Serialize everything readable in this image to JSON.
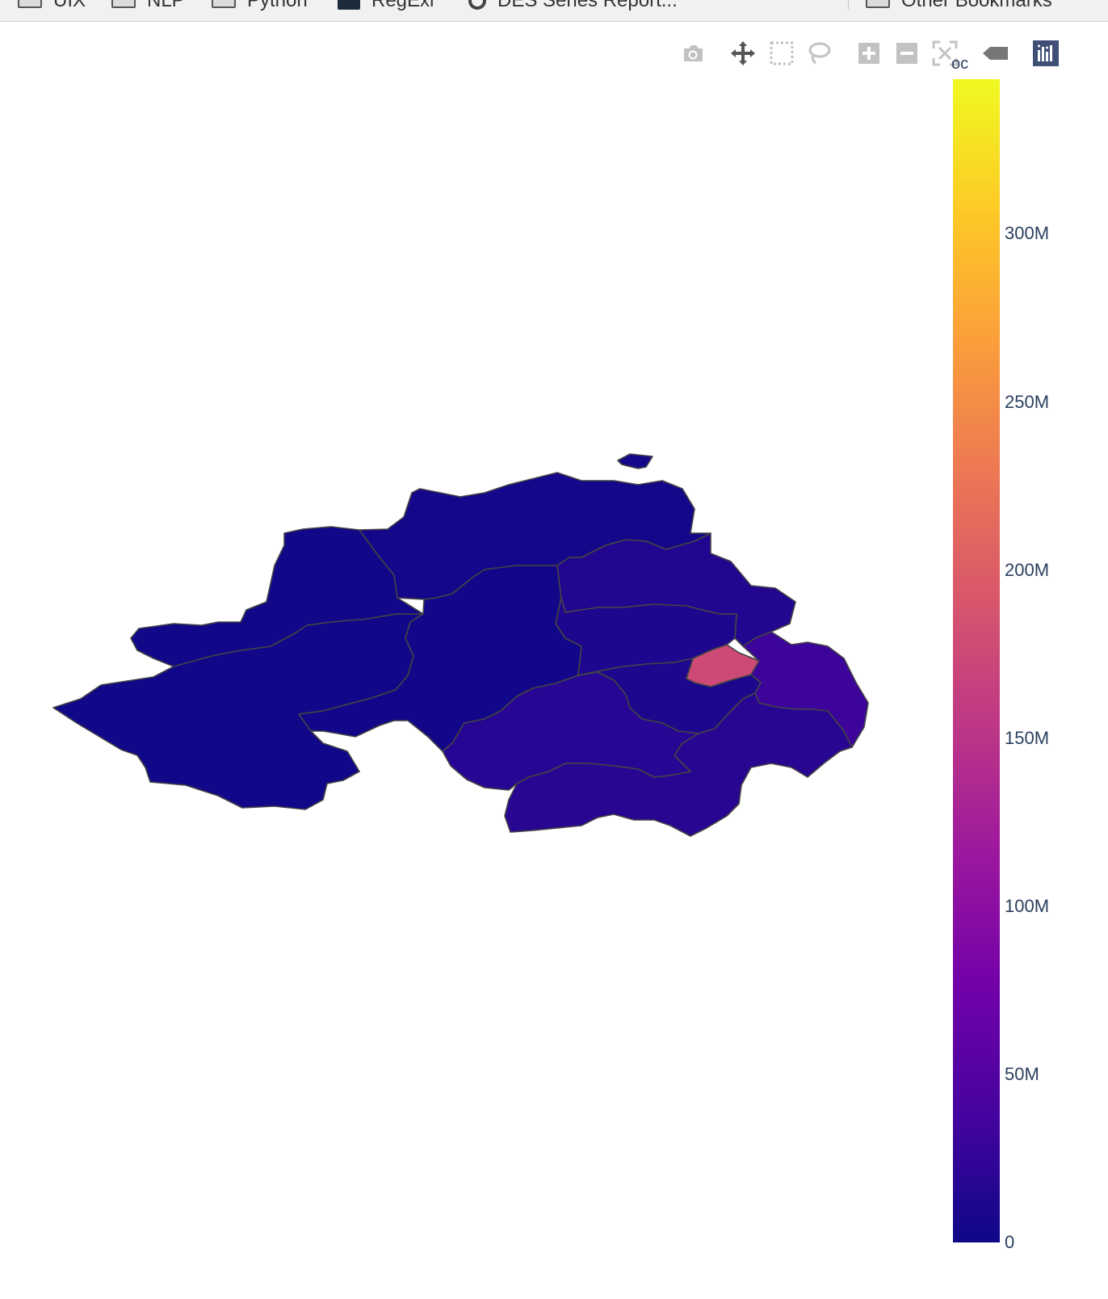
{
  "bookmarks": {
    "items": [
      {
        "label": "UIX",
        "icon": "folder-icon"
      },
      {
        "label": "NLP",
        "icon": "folder-icon"
      },
      {
        "label": "Python",
        "icon": "folder-icon"
      },
      {
        "label": "RegExr",
        "icon": "regexr-icon"
      },
      {
        "label": "DES Series Report...",
        "icon": "ring-icon"
      }
    ],
    "other": {
      "label": "Other Bookmarks",
      "icon": "folder-icon"
    }
  },
  "modebar": {
    "buttons": [
      {
        "name": "camera-icon",
        "color": "#c2c2c2"
      },
      {
        "name": "pan-icon",
        "color": "#555555"
      },
      {
        "name": "box-select-icon",
        "color": "#c2c2c2"
      },
      {
        "name": "lasso-select-icon",
        "color": "#c2c2c2"
      },
      {
        "name": "zoom-in-icon",
        "color": "#c2c2c2"
      },
      {
        "name": "zoom-out-icon",
        "color": "#c2c2c2"
      },
      {
        "name": "autoscale-icon",
        "color": "#c2c2c2"
      },
      {
        "name": "hover-label-icon",
        "color": "#777777"
      },
      {
        "name": "plotly-logo-icon",
        "color": "#3f4f75"
      }
    ]
  },
  "colorbar": {
    "title": "oc",
    "min": 0,
    "max": 346000000,
    "ticks": [
      {
        "value": 0,
        "label": "0"
      },
      {
        "value": 50000000,
        "label": "50M"
      },
      {
        "value": 100000000,
        "label": "100M"
      },
      {
        "value": 150000000,
        "label": "150M"
      },
      {
        "value": 200000000,
        "label": "200M"
      },
      {
        "value": 250000000,
        "label": "250M"
      },
      {
        "value": 300000000,
        "label": "300M"
      }
    ],
    "colorscale": [
      "#0d0887",
      "#46039f",
      "#7201a8",
      "#9c179e",
      "#bd3786",
      "#d8576b",
      "#ed7953",
      "#fb9f3a",
      "#fdca26",
      "#f0f921"
    ]
  },
  "chart_data": {
    "type": "choropleth",
    "z_label": "oc",
    "colorscale": "plasma",
    "zlim": [
      0,
      346000000
    ],
    "regions": [
      {
        "id": "fermanagh-omagh",
        "value": 2000000
      },
      {
        "id": "derry-strabane",
        "value": 3000000
      },
      {
        "id": "causeway-coast-glens",
        "value": 5000000
      },
      {
        "id": "mid-ulster",
        "value": 4000000
      },
      {
        "id": "mid-east-antrim",
        "value": 15000000
      },
      {
        "id": "antrim-newtownabbey",
        "value": 12000000
      },
      {
        "id": "lisburn-castlereagh",
        "value": 10000000
      },
      {
        "id": "belfast",
        "value": 176000000
      },
      {
        "id": "ards-north-down",
        "value": 32000000
      },
      {
        "id": "armagh-banbridge-craigavon",
        "value": 17000000
      },
      {
        "id": "newry-mourne-down",
        "value": 18000000
      },
      {
        "id": "rathlin-island",
        "value": 5000000
      }
    ]
  }
}
